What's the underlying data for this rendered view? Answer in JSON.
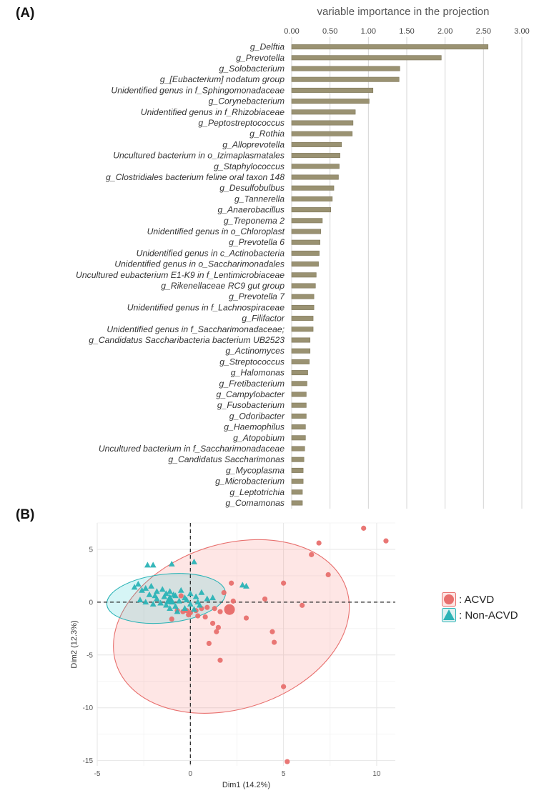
{
  "panel_a": {
    "label": "(A)"
  },
  "panel_b": {
    "label": "(B)"
  },
  "chart_data": [
    {
      "type": "bar",
      "orientation": "horizontal",
      "title": "variable importance in the projection",
      "xlim": [
        0,
        3.0
      ],
      "xticks": [
        "0.00",
        "0.50",
        "1.00",
        "1.50",
        "2.00",
        "2.50",
        "3.00"
      ],
      "bar_color": "#9a9272",
      "categories": [
        "g_Delftia",
        "g_Prevotella",
        "g_Solobacterium",
        "g_[Eubacterium] nodatum group",
        "Unidentified genus in f_Sphingomonadaceae",
        "g_Corynebacterium",
        "Unidentified genus in f_Rhizobiaceae",
        "g_Peptostreptococcus",
        "g_Rothia",
        "g_Alloprevotella",
        "Uncultured bacterium in o_Izimaplasmatales",
        "g_Staphylococcus",
        "g_Clostridiales bacterium feline oral taxon 148",
        "g_Desulfobulbus",
        "g_Tannerella",
        "g_Anaerobacillus",
        "g_Treponema 2",
        "Unidentified genus in o_Chloroplast",
        "g_Prevotella 6",
        "Unidentified genus in c_Actinobacteria",
        "Unidentified genus in o_Saccharimonadales",
        "Uncultured eubacterium E1-K9 in f_Lentimicrobiaceae",
        "g_Rikenellaceae RC9 gut group",
        "g_Prevotella 7",
        "Unidentified genus in f_Lachnospiraceae",
        "g_Filifactor",
        "Unidentified genus in f_Saccharimonadaceae;",
        "g_Candidatus Saccharibacteria bacterium UB2523",
        "g_Actinomyces",
        "g_Streptococcus",
        "g_Halomonas",
        "g_Fretibacterium",
        "g_Campylobacter",
        "g_Fusobacterium",
        "g_Odoribacter",
        "g_Haemophilus",
        "g_Atopobium",
        "Uncultured bacterium in f_Saccharimonadaceae",
        "g_Candidatus Saccharimonas",
        "g_Mycoplasma",
        "g_Microbacterium",
        "g_Leptotrichia",
        "g_Comamonas"
      ],
      "values": [
        2.56,
        1.95,
        1.41,
        1.4,
        1.06,
        1.01,
        0.83,
        0.8,
        0.79,
        0.65,
        0.63,
        0.62,
        0.61,
        0.55,
        0.53,
        0.51,
        0.4,
        0.38,
        0.37,
        0.36,
        0.35,
        0.32,
        0.31,
        0.29,
        0.29,
        0.28,
        0.28,
        0.24,
        0.24,
        0.23,
        0.21,
        0.2,
        0.19,
        0.19,
        0.19,
        0.18,
        0.18,
        0.17,
        0.16,
        0.15,
        0.15,
        0.14,
        0.14
      ]
    },
    {
      "type": "scatter",
      "xlabel": "Dim1 (14.2%)",
      "ylabel": "Dim2 (12.3%)",
      "xlim": [
        -5,
        11
      ],
      "ylim": [
        -15.5,
        7.5
      ],
      "xticks": [
        -5,
        0,
        5,
        10
      ],
      "yticks": [
        5,
        0,
        -5,
        -10,
        -15
      ],
      "series": [
        {
          "name": "ACVD",
          "legend_label": ": ACVD",
          "color": "#e8706e",
          "marker": "circle",
          "centroid": [
            2.1,
            -0.7
          ],
          "ellipse": {
            "cx": 2.2,
            "cy": -2.3,
            "rx": 6.5,
            "ry": 7.8,
            "angle_deg": -18
          },
          "points": [
            [
              9.3,
              7.0
            ],
            [
              10.5,
              5.8
            ],
            [
              6.9,
              5.6
            ],
            [
              6.5,
              4.5
            ],
            [
              7.4,
              2.6
            ],
            [
              5.0,
              1.8
            ],
            [
              2.2,
              1.8
            ],
            [
              1.8,
              0.9
            ],
            [
              4.0,
              0.3
            ],
            [
              2.3,
              0.1
            ],
            [
              6.0,
              -0.3
            ],
            [
              1.3,
              -0.6
            ],
            [
              0.9,
              -0.5
            ],
            [
              0.8,
              -1.4
            ],
            [
              0.4,
              -1.3
            ],
            [
              1.6,
              -0.9
            ],
            [
              3.0,
              -1.5
            ],
            [
              1.2,
              -2.0
            ],
            [
              1.5,
              -2.4
            ],
            [
              1.4,
              -2.8
            ],
            [
              4.4,
              -2.8
            ],
            [
              4.5,
              -3.8
            ],
            [
              1.0,
              -3.9
            ],
            [
              1.6,
              -5.5
            ],
            [
              5.0,
              -8.0
            ],
            [
              5.2,
              -15.1
            ],
            [
              0.3,
              -0.8
            ],
            [
              -0.4,
              -0.9
            ],
            [
              -0.2,
              -0.8
            ],
            [
              -0.1,
              -1.2
            ],
            [
              -1.0,
              -1.6
            ],
            [
              -0.7,
              -0.8
            ],
            [
              0.0,
              -1.0
            ],
            [
              -0.5,
              0.6
            ],
            [
              0.6,
              -0.6
            ]
          ]
        },
        {
          "name": "Non-ACVD",
          "legend_label": ": Non-ACVD",
          "color": "#2bb3b6",
          "marker": "triangle",
          "centroid": [
            -1.1,
            0.2
          ],
          "ellipse": {
            "cx": -1.3,
            "cy": 0.35,
            "rx": 3.2,
            "ry": 2.3,
            "angle_deg": -6
          },
          "points": [
            [
              -2.0,
              3.5
            ],
            [
              -2.3,
              3.5
            ],
            [
              -1.0,
              3.6
            ],
            [
              0.2,
              3.8
            ],
            [
              -2.8,
              1.7
            ],
            [
              -3.0,
              1.4
            ],
            [
              -2.6,
              1.1
            ],
            [
              -2.4,
              1.3
            ],
            [
              -2.1,
              1.5
            ],
            [
              -1.8,
              1.0
            ],
            [
              -1.5,
              1.2
            ],
            [
              -1.3,
              0.8
            ],
            [
              -1.1,
              1.0
            ],
            [
              -0.8,
              0.6
            ],
            [
              -0.5,
              1.1
            ],
            [
              -0.3,
              0.4
            ],
            [
              0.0,
              0.8
            ],
            [
              0.3,
              0.5
            ],
            [
              0.6,
              0.9
            ],
            [
              0.9,
              0.3
            ],
            [
              1.2,
              0.4
            ],
            [
              -2.7,
              0.2
            ],
            [
              -2.4,
              0.0
            ],
            [
              -2.0,
              -0.2
            ],
            [
              -1.8,
              0.3
            ],
            [
              -1.6,
              -0.1
            ],
            [
              -1.3,
              -0.3
            ],
            [
              -1.0,
              0.0
            ],
            [
              -0.8,
              -0.4
            ],
            [
              -0.6,
              0.1
            ],
            [
              -0.3,
              -0.6
            ],
            [
              0.0,
              -0.2
            ],
            [
              0.2,
              -0.7
            ],
            [
              0.5,
              -0.3
            ],
            [
              -2.2,
              0.7
            ],
            [
              -1.9,
              0.6
            ],
            [
              -0.9,
              0.7
            ],
            [
              -0.2,
              0.2
            ],
            [
              2.8,
              1.6
            ],
            [
              3.0,
              1.5
            ],
            [
              -1.4,
              0.5
            ],
            [
              -0.7,
              -0.9
            ],
            [
              0.4,
              0.0
            ],
            [
              -1.1,
              -0.6
            ]
          ]
        }
      ]
    }
  ]
}
